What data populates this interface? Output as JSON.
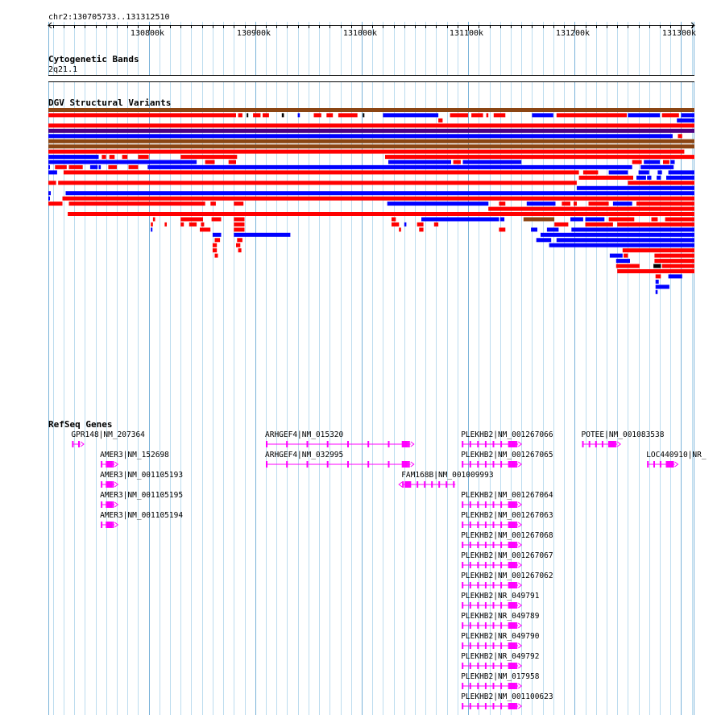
{
  "locus": {
    "label": "chr2:130705733..131312510",
    "start": 130705733,
    "end": 131312510
  },
  "ruler": {
    "ticks": [
      {
        "pos": 130800000,
        "label": "130800k"
      },
      {
        "pos": 130900000,
        "label": "130900k"
      },
      {
        "pos": 131000000,
        "label": "131000k"
      },
      {
        "pos": 131100000,
        "label": "131100k"
      },
      {
        "pos": 131200000,
        "label": "131200k"
      },
      {
        "pos": 131300000,
        "label": "131300k"
      }
    ]
  },
  "tracks": {
    "cytoband": {
      "title": "Cytogenetic Bands",
      "band": "2q21.1"
    },
    "dgv": {
      "title": "DGV Structural Variants",
      "colors": {
        "loss": "#ff0000",
        "gain": "#0000ff",
        "complex": "#8b4513",
        "inversion": "#4b0082",
        "other": "#000000"
      }
    },
    "refseq": {
      "title": "RefSeq Genes",
      "color": "#ff00ff"
    }
  },
  "genes": [
    {
      "label": "GPR148|NM_207364",
      "strand": "+",
      "start": 130728000,
      "end": 130736000
    },
    {
      "label": "AMER3|NM_152698",
      "strand": "+",
      "start": 130755000,
      "end": 130768000
    },
    {
      "label": "AMER3|NM_001105193",
      "strand": "+",
      "start": 130755000,
      "end": 130768000
    },
    {
      "label": "AMER3|NM_001105195",
      "strand": "+",
      "start": 130755000,
      "end": 130768000
    },
    {
      "label": "AMER3|NM_001105194",
      "strand": "+",
      "start": 130755000,
      "end": 130768000
    },
    {
      "label": "ARHGEF4|NM_015320",
      "strand": "+",
      "start": 130910000,
      "end": 131046000
    },
    {
      "label": "ARHGEF4|NM_032995",
      "strand": "+",
      "start": 130910000,
      "end": 131046000
    },
    {
      "label": "FAM168B|NM_001009993",
      "strand": "-",
      "start": 131038000,
      "end": 131088000
    },
    {
      "label": "PLEKHB2|NM_001267066",
      "strand": "+",
      "start": 131094000,
      "end": 131147000
    },
    {
      "label": "PLEKHB2|NM_001267065",
      "strand": "+",
      "start": 131094000,
      "end": 131147000
    },
    {
      "label": "PLEKHB2|NM_001267064",
      "strand": "+",
      "start": 131094000,
      "end": 131147000
    },
    {
      "label": "PLEKHB2|NM_001267063",
      "strand": "+",
      "start": 131094000,
      "end": 131147000
    },
    {
      "label": "PLEKHB2|NM_001267068",
      "strand": "+",
      "start": 131094000,
      "end": 131147000
    },
    {
      "label": "PLEKHB2|NM_001267067",
      "strand": "+",
      "start": 131094000,
      "end": 131147000
    },
    {
      "label": "PLEKHB2|NM_001267062",
      "strand": "+",
      "start": 131094000,
      "end": 131147000
    },
    {
      "label": "PLEKHB2|NR_049791",
      "strand": "+",
      "start": 131094000,
      "end": 131147000
    },
    {
      "label": "PLEKHB2|NR_049789",
      "strand": "+",
      "start": 131094000,
      "end": 131147000
    },
    {
      "label": "PLEKHB2|NR_049790",
      "strand": "+",
      "start": 131094000,
      "end": 131147000
    },
    {
      "label": "PLEKHB2|NR_049792",
      "strand": "+",
      "start": 131094000,
      "end": 131147000
    },
    {
      "label": "PLEKHB2|NM_017958",
      "strand": "+",
      "start": 131094000,
      "end": 131147000
    },
    {
      "label": "PLEKHB2|NM_001100623",
      "strand": "+",
      "start": 131094000,
      "end": 131147000
    },
    {
      "label": "POTEE|NM_001083538",
      "strand": "+",
      "start": 131207000,
      "end": 131240000
    },
    {
      "label": "LOC440910|NR_",
      "strand": "+",
      "start": 131268000,
      "end": 131294000
    }
  ],
  "variants": [
    {
      "type": "complex",
      "start": 130705733,
      "end": 131312510
    },
    {
      "type": "loss",
      "start": 130705733,
      "end": 130882000
    },
    {
      "type": "loss",
      "start": 130884000,
      "end": 130888000
    },
    {
      "type": "other",
      "start": 130892000,
      "end": 130893000
    },
    {
      "type": "loss",
      "start": 130898000,
      "end": 130905000
    },
    {
      "type": "loss",
      "start": 130907000,
      "end": 130913000
    },
    {
      "type": "other",
      "start": 130925000,
      "end": 130927000
    },
    {
      "type": "gain",
      "start": 130940000,
      "end": 130942000
    },
    {
      "type": "loss",
      "start": 130955000,
      "end": 130962000
    },
    {
      "type": "loss",
      "start": 130967000,
      "end": 130973000
    },
    {
      "type": "loss",
      "start": 130978000,
      "end": 130996000
    },
    {
      "type": "other",
      "start": 131001000,
      "end": 131002000
    },
    {
      "type": "gain",
      "start": 131020000,
      "end": 131072000
    },
    {
      "type": "loss",
      "start": 131072000,
      "end": 131076000
    },
    {
      "type": "loss",
      "start": 131083000,
      "end": 131100000
    },
    {
      "type": "loss",
      "start": 131103000,
      "end": 131114000
    },
    {
      "type": "loss",
      "start": 131117000,
      "end": 131119000
    },
    {
      "type": "loss",
      "start": 131124000,
      "end": 131135000
    },
    {
      "type": "gain",
      "start": 131160000,
      "end": 131180000
    },
    {
      "type": "loss",
      "start": 131183000,
      "end": 131249000
    },
    {
      "type": "gain",
      "start": 131250000,
      "end": 131280000
    },
    {
      "type": "loss",
      "start": 131282000,
      "end": 131298000
    },
    {
      "type": "gain",
      "start": 131300000,
      "end": 131312510
    },
    {
      "type": "loss",
      "start": 130705733,
      "end": 131312510
    },
    {
      "type": "inversion",
      "start": 130705733,
      "end": 131312510
    },
    {
      "type": "gain",
      "start": 130705733,
      "end": 131292000
    },
    {
      "type": "gain",
      "start": 131296000,
      "end": 131312510
    },
    {
      "type": "complex",
      "start": 130705733,
      "end": 131312510
    },
    {
      "type": "complex",
      "start": 130705733,
      "end": 131312510
    },
    {
      "type": "loss",
      "start": 130705733,
      "end": 131303000
    },
    {
      "type": "gain",
      "start": 130705733,
      "end": 130753000
    },
    {
      "type": "loss",
      "start": 130756000,
      "end": 130760000
    },
    {
      "type": "loss",
      "start": 130763000,
      "end": 130768000
    },
    {
      "type": "loss",
      "start": 130775000,
      "end": 130780000
    },
    {
      "type": "loss",
      "start": 130790000,
      "end": 130800000
    },
    {
      "type": "loss",
      "start": 130830000,
      "end": 130883000
    },
    {
      "type": "loss",
      "start": 131022000,
      "end": 131312510
    },
    {
      "type": "gain",
      "start": 130705733,
      "end": 130845000
    },
    {
      "type": "loss",
      "start": 130853000,
      "end": 130862000
    },
    {
      "type": "loss",
      "start": 130875000,
      "end": 130882000
    },
    {
      "type": "gain",
      "start": 131025000,
      "end": 131084000
    },
    {
      "type": "loss",
      "start": 131086000,
      "end": 131093000
    },
    {
      "type": "gain",
      "start": 131095000,
      "end": 131150000
    },
    {
      "type": "gain",
      "start": 130705733,
      "end": 130707000
    },
    {
      "type": "loss",
      "start": 130712000,
      "end": 130723000
    },
    {
      "type": "loss",
      "start": 130725000,
      "end": 130738000
    },
    {
      "type": "gain",
      "start": 130745000,
      "end": 130752000
    },
    {
      "type": "gain",
      "start": 130753000,
      "end": 130755000
    },
    {
      "type": "loss",
      "start": 130762000,
      "end": 130770000
    },
    {
      "type": "loss",
      "start": 130781000,
      "end": 130790000
    },
    {
      "type": "gain",
      "start": 130799000,
      "end": 131254000
    },
    {
      "type": "loss",
      "start": 131254000,
      "end": 131263000
    },
    {
      "type": "gain",
      "start": 131265000,
      "end": 131280000
    },
    {
      "type": "loss",
      "start": 131283000,
      "end": 131289000
    },
    {
      "type": "gain",
      "start": 131290000,
      "end": 131294000
    },
    {
      "type": "gain",
      "start": 130705733,
      "end": 130714000
    },
    {
      "type": "loss",
      "start": 130720000,
      "end": 131204000
    },
    {
      "type": "loss",
      "start": 131204000,
      "end": 131255000
    },
    {
      "type": "gain",
      "start": 131262000,
      "end": 131293000
    },
    {
      "type": "loss",
      "start": 130705733,
      "end": 130713000
    },
    {
      "type": "loss",
      "start": 130715000,
      "end": 131202000
    },
    {
      "type": "gain",
      "start": 131202000,
      "end": 131312510
    },
    {
      "type": "gain",
      "start": 130705733,
      "end": 130708000
    },
    {
      "type": "gain",
      "start": 130722000,
      "end": 131312510
    },
    {
      "type": "gain",
      "start": 130705733,
      "end": 130707000
    },
    {
      "type": "loss",
      "start": 130719000,
      "end": 131312510
    },
    {
      "type": "loss",
      "start": 130705733,
      "end": 130719000
    },
    {
      "type": "loss",
      "start": 130725000,
      "end": 130853000
    },
    {
      "type": "loss",
      "start": 130858000,
      "end": 130863000
    },
    {
      "type": "loss",
      "start": 130880000,
      "end": 130889000
    },
    {
      "type": "gain",
      "start": 131024000,
      "end": 131119000
    },
    {
      "type": "loss",
      "start": 131119000,
      "end": 131312510
    },
    {
      "type": "loss",
      "start": 130724000,
      "end": 131312510
    },
    {
      "type": "loss",
      "start": 130804000,
      "end": 130806000
    },
    {
      "type": "loss",
      "start": 130830000,
      "end": 130851000
    },
    {
      "type": "loss",
      "start": 130859000,
      "end": 130868000
    },
    {
      "type": "loss",
      "start": 130880000,
      "end": 130890000
    },
    {
      "type": "loss",
      "start": 131028000,
      "end": 131032000
    },
    {
      "type": "gain",
      "start": 131056000,
      "end": 131129000
    },
    {
      "type": "loss",
      "start": 131129000,
      "end": 131135000
    },
    {
      "type": "gain",
      "start": 131155000,
      "end": 131182000
    },
    {
      "type": "loss",
      "start": 131188000,
      "end": 131196000
    },
    {
      "type": "loss",
      "start": 131199000,
      "end": 131202000
    },
    {
      "type": "loss",
      "start": 131208000,
      "end": 131222000
    },
    {
      "type": "gain",
      "start": 131232000,
      "end": 131250000
    },
    {
      "type": "loss",
      "start": 131250000,
      "end": 131312510
    },
    {
      "type": "loss",
      "start": 130802000,
      "end": 130804000
    },
    {
      "type": "loss",
      "start": 130815000,
      "end": 130817000
    },
    {
      "type": "loss",
      "start": 130830000,
      "end": 130833000
    },
    {
      "type": "loss",
      "start": 130838000,
      "end": 130845000
    },
    {
      "type": "loss",
      "start": 130849000,
      "end": 130852000
    },
    {
      "type": "loss",
      "start": 130880000,
      "end": 130890000
    },
    {
      "type": "loss",
      "start": 131028000,
      "end": 131035000
    },
    {
      "type": "gain",
      "start": 131040000,
      "end": 131042000
    },
    {
      "type": "loss",
      "start": 131052000,
      "end": 131058000
    },
    {
      "type": "loss",
      "start": 131068000,
      "end": 131072000
    },
    {
      "type": "gain",
      "start": 131130000,
      "end": 131134000
    },
    {
      "type": "complex",
      "start": 131152000,
      "end": 131181000
    },
    {
      "type": "loss",
      "start": 131181000,
      "end": 131194000
    },
    {
      "type": "gain",
      "start": 131196000,
      "end": 131208000
    },
    {
      "type": "loss",
      "start": 131213000,
      "end": 131232000
    },
    {
      "type": "gain",
      "start": 131236000,
      "end": 131254000
    },
    {
      "type": "gain",
      "start": 131260000,
      "end": 131270000
    },
    {
      "type": "gain",
      "start": 131278000,
      "end": 131282000
    },
    {
      "type": "gain",
      "start": 131288000,
      "end": 131312510
    },
    {
      "type": "gain",
      "start": 130802000,
      "end": 130803000
    },
    {
      "type": "loss",
      "start": 130848000,
      "end": 130858000
    },
    {
      "type": "loss",
      "start": 130880000,
      "end": 130890000
    },
    {
      "type": "loss",
      "start": 131035000,
      "end": 131037000
    },
    {
      "type": "loss",
      "start": 131054000,
      "end": 131058000
    },
    {
      "type": "loss",
      "start": 131129000,
      "end": 131135000
    },
    {
      "type": "gain",
      "start": 131159000,
      "end": 131165000
    },
    {
      "type": "gain",
      "start": 131174000,
      "end": 131185000
    },
    {
      "type": "gain",
      "start": 131210000,
      "end": 131228000
    },
    {
      "type": "loss",
      "start": 131232000,
      "end": 131256000
    },
    {
      "type": "gain",
      "start": 131258000,
      "end": 131267000
    },
    {
      "type": "gain",
      "start": 131268000,
      "end": 131272000
    },
    {
      "type": "gain",
      "start": 131277000,
      "end": 131281000
    },
    {
      "type": "gain",
      "start": 131286000,
      "end": 131312510
    },
    {
      "type": "gain",
      "start": 130860000,
      "end": 130868000
    },
    {
      "type": "gain",
      "start": 130880000,
      "end": 130933000
    },
    {
      "type": "gain",
      "start": 131168000,
      "end": 131312510
    },
    {
      "type": "loss",
      "start": 130862000,
      "end": 130867000
    },
    {
      "type": "loss",
      "start": 130883000,
      "end": 130888000
    },
    {
      "type": "gain",
      "start": 131164000,
      "end": 131178000
    },
    {
      "type": "loss",
      "start": 131210000,
      "end": 131236000
    },
    {
      "type": "loss",
      "start": 131240000,
      "end": 131312510
    },
    {
      "type": "loss",
      "start": 130860000,
      "end": 130864000
    },
    {
      "type": "loss",
      "start": 130882000,
      "end": 130886000
    },
    {
      "type": "gain",
      "start": 131176000,
      "end": 131312510
    },
    {
      "type": "loss",
      "start": 130860000,
      "end": 130864000
    },
    {
      "type": "loss",
      "start": 130884000,
      "end": 130887000
    },
    {
      "type": "gain",
      "start": 131183000,
      "end": 131312510
    },
    {
      "type": "loss",
      "start": 130862000,
      "end": 130865000
    },
    {
      "type": "gain",
      "start": 131197000,
      "end": 131312510
    },
    {
      "type": "loss",
      "start": 131245000,
      "end": 131312510
    },
    {
      "type": "gain",
      "start": 131233000,
      "end": 131245000
    },
    {
      "type": "loss",
      "start": 131246000,
      "end": 131250000
    },
    {
      "type": "loss",
      "start": 131258000,
      "end": 131312510
    },
    {
      "type": "gain",
      "start": 131239000,
      "end": 131252000
    },
    {
      "type": "loss",
      "start": 131272000,
      "end": 131278000
    },
    {
      "type": "loss",
      "start": 131285000,
      "end": 131312510
    },
    {
      "type": "loss",
      "start": 131239000,
      "end": 131261000
    },
    {
      "type": "loss",
      "start": 131275000,
      "end": 131312510
    },
    {
      "type": "loss",
      "start": 131240000,
      "end": 131312510
    },
    {
      "type": "loss",
      "start": 131275000,
      "end": 131312510
    },
    {
      "type": "other",
      "start": 131274000,
      "end": 131281000
    },
    {
      "type": "loss",
      "start": 131282000,
      "end": 131312510
    },
    {
      "type": "loss",
      "start": 131276000,
      "end": 131281000
    },
    {
      "type": "gain",
      "start": 131288000,
      "end": 131301000
    },
    {
      "type": "gain",
      "start": 131276000,
      "end": 131279000
    },
    {
      "type": "loss",
      "start": 131297000,
      "end": 131301000
    },
    {
      "type": "gain",
      "start": 131276000,
      "end": 131289000
    },
    {
      "type": "gain",
      "start": 131276000,
      "end": 131278000
    }
  ]
}
